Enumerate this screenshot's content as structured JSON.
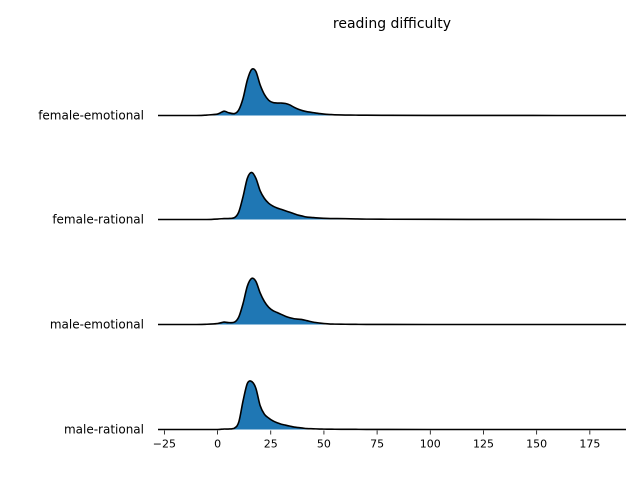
{
  "chart_data": {
    "type": "ridgeline",
    "title": "reading difficulty",
    "xlabel": "",
    "ylabel": "",
    "xlim": [
      -28,
      192
    ],
    "x_ticks": [
      -25,
      0,
      25,
      50,
      75,
      100,
      125,
      150,
      175
    ],
    "grid": false,
    "fill_color": "#1f77b4",
    "line_color": "#000000",
    "x": [
      -28,
      -10,
      -5,
      0,
      3,
      5,
      8,
      10,
      12,
      14,
      16,
      18,
      20,
      22,
      24,
      26,
      28,
      30,
      32,
      34,
      36,
      38,
      40,
      42,
      45,
      48,
      50,
      53,
      55,
      60,
      65,
      70,
      80,
      100,
      130,
      160,
      192
    ],
    "series": [
      {
        "name": "female-emotional",
        "values": [
          0,
          0,
          0.01,
          0.03,
          0.09,
          0.06,
          0.04,
          0.12,
          0.36,
          0.74,
          0.96,
          0.92,
          0.64,
          0.44,
          0.32,
          0.27,
          0.26,
          0.26,
          0.25,
          0.22,
          0.17,
          0.13,
          0.1,
          0.08,
          0.06,
          0.04,
          0.03,
          0.02,
          0.015,
          0.01,
          0.008,
          0.006,
          0.004,
          0.002,
          0.001,
          0,
          0
        ]
      },
      {
        "name": "female-rational",
        "values": [
          0,
          0,
          0,
          0.01,
          0.02,
          0.02,
          0.04,
          0.16,
          0.48,
          0.86,
          0.98,
          0.86,
          0.6,
          0.44,
          0.34,
          0.28,
          0.24,
          0.21,
          0.18,
          0.15,
          0.12,
          0.09,
          0.07,
          0.05,
          0.04,
          0.03,
          0.025,
          0.02,
          0.02,
          0.018,
          0.012,
          0.008,
          0.005,
          0.003,
          0.001,
          0,
          0
        ]
      },
      {
        "name": "male-emotional",
        "values": [
          0,
          0,
          0.005,
          0.02,
          0.05,
          0.04,
          0.05,
          0.16,
          0.44,
          0.8,
          0.96,
          0.9,
          0.66,
          0.48,
          0.36,
          0.29,
          0.25,
          0.21,
          0.17,
          0.14,
          0.12,
          0.11,
          0.1,
          0.08,
          0.05,
          0.03,
          0.02,
          0.01,
          0.008,
          0.005,
          0.003,
          0.002,
          0.001,
          0,
          0,
          0,
          0
        ]
      },
      {
        "name": "male-rational",
        "values": [
          0,
          0,
          0,
          0,
          0.01,
          0.01,
          0.03,
          0.16,
          0.6,
          0.96,
          1.0,
          0.86,
          0.5,
          0.32,
          0.24,
          0.18,
          0.14,
          0.11,
          0.09,
          0.07,
          0.05,
          0.04,
          0.03,
          0.02,
          0.015,
          0.01,
          0.008,
          0.006,
          0.005,
          0.004,
          0.003,
          0.002,
          0.001,
          0,
          0,
          0,
          0
        ]
      }
    ]
  }
}
